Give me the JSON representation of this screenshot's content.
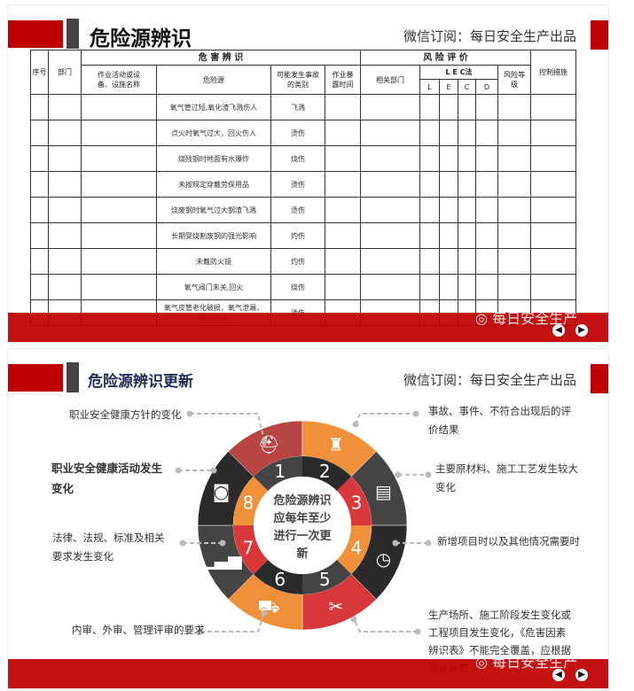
{
  "slide1": {
    "title": "危险源辨识",
    "subscription": "微信订阅：每日安全生产出品",
    "table": {
      "group_hazard": "危 害 辨 识",
      "group_risk": "风 险 评 价",
      "col_no": "序号",
      "col_dept": "部门",
      "col_activity": "作业活动或设备、设施名称",
      "col_hazard": "危险源",
      "col_type": "可能发生事故的类别",
      "col_time": "作业暴露时间",
      "col_related": "相关部门",
      "col_lec": "L E C法",
      "col_l": "L",
      "col_e": "E",
      "col_c": "C",
      "col_d": "D",
      "col_level": "风险等级",
      "col_control": "控制措施",
      "rows": [
        {
          "hazard": "氧气管过短,氧化渣飞溅伤人",
          "type": "飞溅"
        },
        {
          "hazard": "点火时氧气过大，回火伤人",
          "type": "烫伤"
        },
        {
          "hazard": "烧残钢时地面有水爆炸",
          "type": "烧伤"
        },
        {
          "hazard": "未按规定穿戴劳保用品",
          "type": "烫伤"
        },
        {
          "hazard": "烧废钢时氧气过大钢渣飞溅",
          "type": "烫伤"
        },
        {
          "hazard": "长期受烧割废钢的强光影响",
          "type": "灼伤"
        },
        {
          "hazard": "未戴防火镜",
          "type": "灼伤"
        },
        {
          "hazard": "氧气阀门未关,回火",
          "type": "烧伤"
        },
        {
          "hazard": "氧气皮管老化破损，氧气泄漏，回火伤人",
          "type": "烫伤"
        }
      ]
    },
    "watermark": "每日安全生产"
  },
  "slide2": {
    "title": "危险源辨识更新",
    "subscription": "微信订阅：每日安全生产出品",
    "center_text": "危险源辨识应每年至少进行一次更新",
    "segments": [
      {
        "num": "1",
        "icon": "worker-helmet-icon",
        "outer": "#b84444",
        "inner": "#444444"
      },
      {
        "num": "2",
        "icon": "power-tower-icon",
        "outer": "#f0913a",
        "inner": "#2a2a2a"
      },
      {
        "num": "3",
        "icon": "book-icon",
        "outer": "#444444",
        "inner": "#d9383a"
      },
      {
        "num": "4",
        "icon": "clock-icon",
        "outer": "#2a2a2a",
        "inner": "#f0913a"
      },
      {
        "num": "5",
        "icon": "scissors-icon",
        "outer": "#d9383a",
        "inner": "#444444"
      },
      {
        "num": "6",
        "icon": "truck-icon",
        "outer": "#f0913a",
        "inner": "#2a2a2a"
      },
      {
        "num": "7",
        "icon": "growth-chart-icon",
        "outer": "#444444",
        "inner": "#d9383a"
      },
      {
        "num": "8",
        "icon": "piggy-bank-icon",
        "outer": "#2a2a2a",
        "inner": "#f0913a"
      }
    ],
    "labels": {
      "policy": "职业安全健康方针的变化",
      "activity": "职业安全健康活动发生变化",
      "law": "法律、法规、标准及相关要求发生变化",
      "audit": "内审、外审、管理评审的要求",
      "accident": "事故、事件、不符合出现后的评价结果",
      "material": "主要原材料、施工工艺发生较大变化",
      "project": "新增项目时以及其他情况需要时",
      "site": "生产场所、施工阶段发生变化或工程项目发生变化，《危害因素辨识表》不能完全覆盖，应根据变化补充"
    },
    "watermark": "每日安全生产"
  },
  "colors": {
    "brand_red": "#c00000",
    "title_navy": "#1f2d5a",
    "dark": "#444444"
  },
  "nav": {
    "prev": "◀",
    "next": "▶"
  }
}
